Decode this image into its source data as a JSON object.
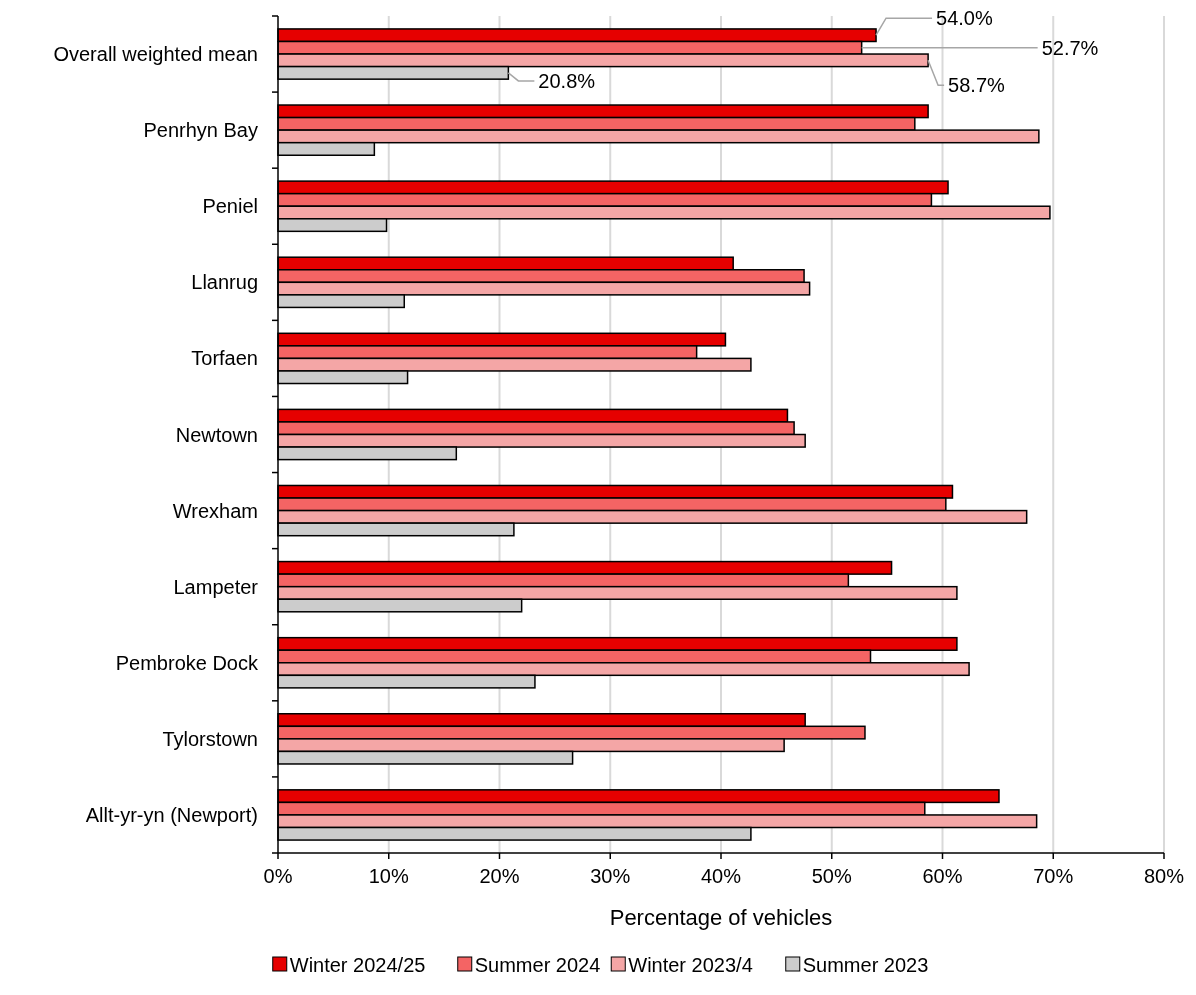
{
  "chart_data": {
    "type": "bar",
    "orientation": "horizontal",
    "xlabel": "Percentage of vehicles",
    "categories": [
      "Overall weighted mean",
      "Penrhyn Bay",
      "Peniel",
      "Llanrug",
      "Torfaen",
      "Newtown",
      "Wrexham",
      "Lampeter",
      "Pembroke Dock",
      "Tylorstown",
      "Allt-yr-yn (Newport)"
    ],
    "series": [
      {
        "name": "Winter 2024/25",
        "color": "#e60000",
        "values": [
          54.0,
          58.7,
          60.5,
          41.1,
          40.4,
          46.0,
          60.9,
          55.4,
          61.3,
          47.6,
          65.1
        ],
        "value_labels": [
          "54.0%",
          null,
          null,
          null,
          null,
          null,
          null,
          null,
          null,
          null,
          null
        ]
      },
      {
        "name": "Summer 2024",
        "color": "#f46464",
        "values": [
          52.7,
          57.5,
          59.0,
          47.5,
          37.8,
          46.6,
          60.3,
          51.5,
          53.5,
          53.0,
          58.4
        ],
        "value_labels": [
          "52.7%",
          null,
          null,
          null,
          null,
          null,
          null,
          null,
          null,
          null,
          null
        ]
      },
      {
        "name": "Winter 2023/4",
        "color": "#f4a6a6",
        "values": [
          58.7,
          68.7,
          69.7,
          48.0,
          42.7,
          47.6,
          67.6,
          61.3,
          62.4,
          45.7,
          68.5
        ],
        "value_labels": [
          "58.7%",
          null,
          null,
          null,
          null,
          null,
          null,
          null,
          null,
          null,
          null
        ]
      },
      {
        "name": "Summer 2023",
        "color": "#cccccc",
        "values": [
          20.8,
          8.7,
          9.8,
          11.4,
          11.7,
          16.1,
          21.3,
          22.0,
          23.2,
          26.6,
          42.7
        ],
        "value_labels": [
          "20.8%",
          null,
          null,
          null,
          null,
          null,
          null,
          null,
          null,
          null,
          null
        ]
      }
    ],
    "xlim": [
      0,
      80
    ],
    "xticks": [
      {
        "value": 0,
        "label": "0%"
      },
      {
        "value": 10,
        "label": "10%"
      },
      {
        "value": 20,
        "label": "20%"
      },
      {
        "value": 30,
        "label": "30%"
      },
      {
        "value": 40,
        "label": "40%"
      },
      {
        "value": 50,
        "label": "50%"
      },
      {
        "value": 60,
        "label": "60%"
      },
      {
        "value": 70,
        "label": "70%"
      },
      {
        "value": 80,
        "label": "80%"
      }
    ],
    "grid": "x",
    "legend": "bottom"
  }
}
